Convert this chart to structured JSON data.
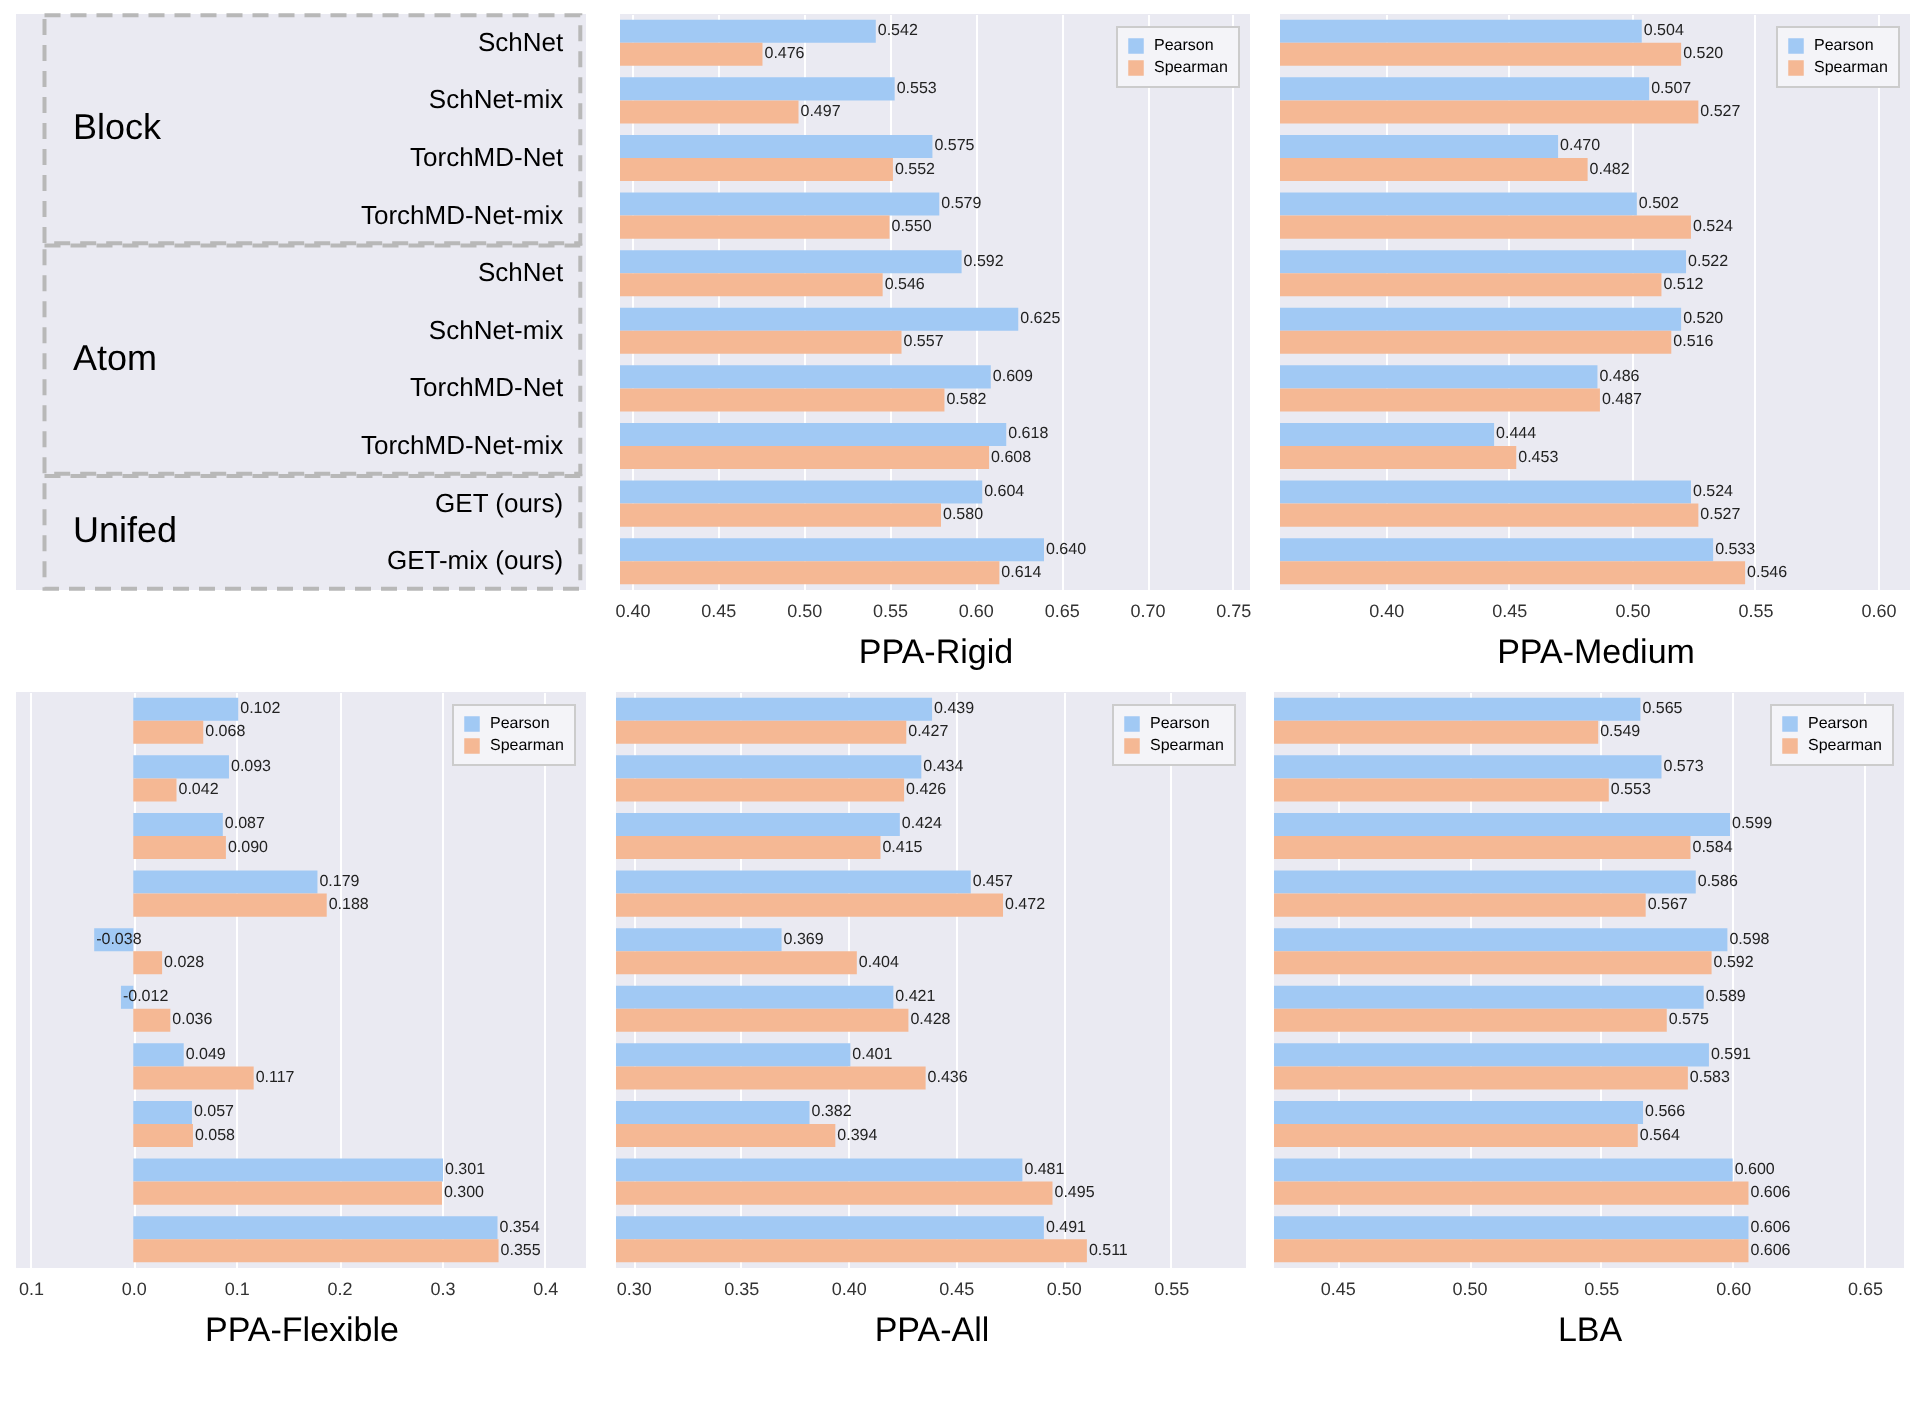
{
  "chart_data": [
    {
      "type": "bar",
      "orientation": "horizontal",
      "xlabel": "PPA-Rigid",
      "annotations": [
        "Block",
        "Atom",
        "Unifed"
      ],
      "categories": [
        "SchNet",
        "SchNet-mix",
        "TorchMD-Net",
        "TorchMD-Net-mix",
        "SchNet",
        "SchNet-mix",
        "TorchMD-Net",
        "TorchMD-Net-mix",
        "GET (ours)",
        "GET-mix (ours)"
      ],
      "series": [
        {
          "name": "Pearson",
          "color": "#a1c9f4",
          "values": [
            0.542,
            0.553,
            0.575,
            0.579,
            0.592,
            0.625,
            0.609,
            0.618,
            0.604,
            0.64
          ],
          "value_labels": [
            "0.542",
            "0.553",
            "0.575",
            "0.579",
            "0.592",
            "0.625",
            "0.609",
            "0.618",
            "0.604",
            "0.640"
          ]
        },
        {
          "name": "Spearman",
          "color": "#f5b894",
          "values": [
            0.476,
            0.497,
            0.552,
            0.55,
            0.546,
            0.557,
            0.582,
            0.608,
            0.58,
            0.614
          ],
          "value_labels": [
            "0.476",
            "0.497",
            "0.552",
            "0.550",
            "0.546",
            "0.557",
            "0.582",
            "0.608",
            "0.580",
            "0.614"
          ]
        }
      ],
      "xlim": [
        0.393,
        0.76
      ],
      "xticks": [
        {
          "value": 0.4,
          "label": "0.40"
        },
        {
          "value": 0.45,
          "label": "0.45"
        },
        {
          "value": 0.5,
          "label": "0.50"
        },
        {
          "value": 0.55,
          "label": "0.55"
        },
        {
          "value": 0.6,
          "label": "0.60"
        },
        {
          "value": 0.65,
          "label": "0.65"
        },
        {
          "value": 0.7,
          "label": "0.70"
        },
        {
          "value": 0.75,
          "label": "0.75"
        }
      ],
      "grid": "x",
      "legend": "top right"
    },
    {
      "type": "bar",
      "orientation": "horizontal",
      "xlabel": "PPA-Medium",
      "tick_labels": "x",
      "categories": [
        null,
        null,
        null,
        null,
        null,
        null,
        null,
        null,
        null,
        null
      ],
      "series": [
        {
          "name": "Pearson",
          "color": "#a1c9f4",
          "values": [
            0.504,
            0.507,
            0.47,
            0.502,
            0.522,
            0.52,
            0.486,
            0.444,
            0.524,
            0.533
          ],
          "value_labels": [
            "0.504",
            "0.507",
            "0.470",
            "0.502",
            "0.522",
            "0.520",
            "0.486",
            "0.444",
            "0.524",
            "0.533"
          ]
        },
        {
          "name": "Spearman",
          "color": "#f5b894",
          "values": [
            0.52,
            0.527,
            0.482,
            0.524,
            0.512,
            0.516,
            0.487,
            0.453,
            0.527,
            0.546
          ],
          "value_labels": [
            "0.520",
            "0.527",
            "0.482",
            "0.524",
            "0.512",
            "0.516",
            "0.487",
            "0.453",
            "0.527",
            "0.546"
          ]
        }
      ],
      "xlim": [
        0.357,
        0.613
      ],
      "xticks": [
        {
          "value": 0.4,
          "label": "0.40"
        },
        {
          "value": 0.45,
          "label": "0.45"
        },
        {
          "value": 0.5,
          "label": "0.50"
        },
        {
          "value": 0.55,
          "label": "0.55"
        },
        {
          "value": 0.6,
          "label": "0.60"
        }
      ],
      "grid": "x",
      "legend": "top right"
    },
    {
      "type": "bar",
      "orientation": "horizontal",
      "xlabel": "PPA-Flexible",
      "tick_labels": "x",
      "categories": [
        null,
        null,
        null,
        null,
        null,
        null,
        null,
        null,
        null,
        null
      ],
      "series": [
        {
          "name": "Pearson",
          "color": "#a1c9f4",
          "values": [
            0.102,
            0.093,
            0.087,
            0.179,
            -0.038,
            -0.012,
            0.049,
            0.057,
            0.301,
            0.354
          ],
          "value_labels": [
            "0.102",
            "0.093",
            "0.087",
            "0.179",
            "-0.038",
            "-0.012",
            "0.049",
            "0.057",
            "0.301",
            "0.354"
          ]
        },
        {
          "name": "Spearman",
          "color": "#f5b894",
          "values": [
            0.068,
            0.042,
            0.09,
            0.188,
            0.028,
            0.036,
            0.117,
            0.058,
            0.3,
            0.355
          ],
          "value_labels": [
            "0.068",
            "0.042",
            "0.090",
            "0.188",
            "0.028",
            "0.036",
            "0.117",
            "0.058",
            "0.300",
            "0.355"
          ]
        }
      ],
      "xlim": [
        -0.114,
        0.44
      ],
      "xticks": [
        {
          "value": -0.1,
          "label": "0.1"
        },
        {
          "value": 0,
          "label": "0.0"
        },
        0.1,
        0.2,
        0.3,
        0.4
      ],
      "grid": "x",
      "legend": "top right"
    },
    {
      "type": "bar",
      "orientation": "horizontal",
      "xlabel": "PPA-All",
      "tick_labels": "x",
      "categories": [
        null,
        null,
        null,
        null,
        null,
        null,
        null,
        null,
        null,
        null
      ],
      "series": [
        {
          "name": "Pearson",
          "color": "#a1c9f4",
          "values": [
            0.439,
            0.434,
            0.424,
            0.457,
            0.369,
            0.421,
            0.401,
            0.382,
            0.481,
            0.491
          ],
          "value_labels": [
            "0.439",
            "0.434",
            "0.424",
            "0.457",
            "0.369",
            "0.421",
            "0.401",
            "0.382",
            "0.481",
            "0.491"
          ]
        },
        {
          "name": "Spearman",
          "color": "#f5b894",
          "values": [
            0.427,
            0.426,
            0.415,
            0.472,
            0.404,
            0.428,
            0.436,
            0.394,
            0.495,
            0.511
          ],
          "value_labels": [
            "0.427",
            "0.426",
            "0.415",
            "0.472",
            "0.404",
            "0.428",
            "0.436",
            "0.394",
            "0.495",
            "0.511"
          ]
        }
      ],
      "xlim": [
        0.292,
        0.585
      ],
      "xticks": [
        {
          "value": 0.3,
          "label": "0.30"
        },
        0.35,
        {
          "value": 0.4,
          "label": "0.40"
        },
        0.45,
        {
          "value": 0.5,
          "label": "0.50"
        },
        0.55
      ],
      "grid": "x",
      "legend": "top right"
    },
    {
      "type": "bar",
      "orientation": "horizontal",
      "xlabel": "LBA",
      "tick_labels": "x",
      "categories": [
        null,
        null,
        null,
        null,
        null,
        null,
        null,
        null,
        null,
        null
      ],
      "series": [
        {
          "name": "Pearson",
          "color": "#a1c9f4",
          "values": [
            0.565,
            0.573,
            0.599,
            0.586,
            0.598,
            0.589,
            0.591,
            0.566,
            0.6,
            0.606
          ],
          "value_labels": [
            "0.565",
            "0.573",
            "0.599",
            "0.586",
            "0.598",
            "0.589",
            "0.591",
            "0.566",
            "0.600",
            "0.606"
          ]
        },
        {
          "name": "Spearman",
          "color": "#f5b894",
          "values": [
            0.549,
            0.553,
            0.584,
            0.567,
            0.592,
            0.575,
            0.583,
            0.564,
            0.606,
            0.606
          ],
          "value_labels": [
            "0.549",
            "0.553",
            "0.584",
            "0.567",
            "0.592",
            "0.575",
            "0.583",
            "0.564",
            "0.606",
            "0.606"
          ]
        }
      ],
      "xlim": [
        0.426,
        0.665
      ],
      "xticks": [
        0.45,
        {
          "value": 0.5,
          "label": "0.50"
        },
        0.55,
        {
          "value": 0.6,
          "label": "0.60"
        },
        0.65
      ],
      "grid": "x",
      "legend": "top right"
    }
  ]
}
